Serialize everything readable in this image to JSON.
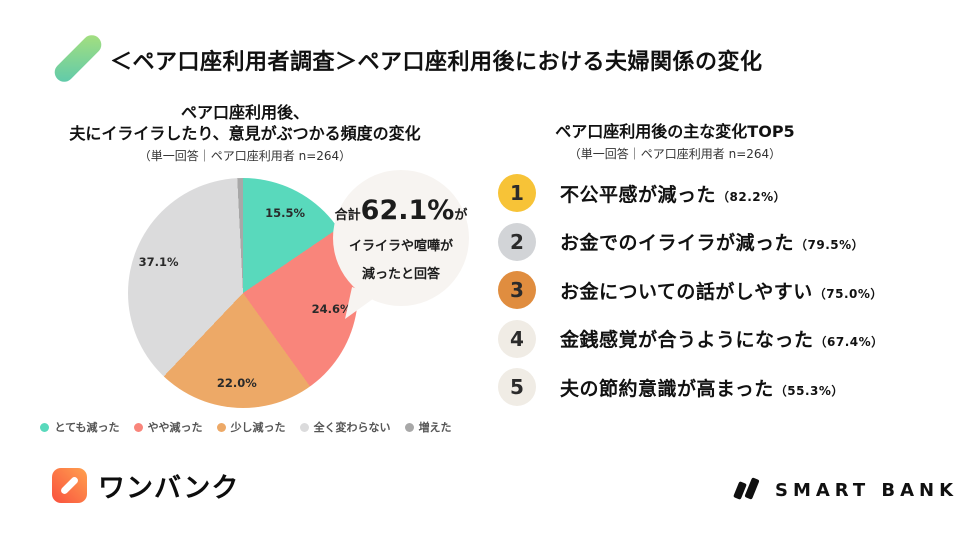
{
  "header": {
    "title": "＜ペア口座利用者調査＞ペア口座利用後における夫婦関係の変化"
  },
  "pie_section": {
    "title_line1": "ペア口座利用後、",
    "title_line2": "夫にイライラしたり、意見がぶつかる頻度の変化",
    "subtitle": "（単一回答｜ペア口座利用者 n=264）",
    "bubble": {
      "prefix": "合計",
      "value": "62.1%",
      "suffix": "が",
      "line2": "イライラや喧嘩が",
      "line3": "減ったと回答"
    }
  },
  "chart_data": {
    "type": "pie",
    "title": "ペア口座利用後、夫にイライラしたり、意見がぶつかる頻度の変化",
    "subtitle": "（単一回答｜ペア口座利用者 n=264）",
    "labels": [
      "とても減った",
      "やや減った",
      "少し減った",
      "全く変わらない",
      "増えた"
    ],
    "values": [
      15.5,
      24.6,
      22.0,
      37.1,
      0.8
    ],
    "display_labels": [
      "15.5%",
      "24.6%",
      "22.0%",
      "37.1%",
      ""
    ],
    "colors": [
      "#59d9bc",
      "#f9857b",
      "#eda967",
      "#dbdbdc",
      "#a8a8a8"
    ],
    "start_angle_deg": 0,
    "direction": "clockwise",
    "legend_position": "bottom",
    "annotation": "合計62.1%がイライラや喧嘩が減ったと回答"
  },
  "ranking": {
    "title": "ペア口座利用後の主な変化TOP5",
    "subtitle": "（単一回答｜ペア口座利用者 n=264）",
    "items": [
      {
        "rank": "1",
        "label": "不公平感が減った",
        "percent": "（82.2%）",
        "badge_color": "#f7c337"
      },
      {
        "rank": "2",
        "label": "お金でのイライラが減った",
        "percent": "（79.5%）",
        "badge_color": "#d2d4d7"
      },
      {
        "rank": "3",
        "label": "お金についての話がしやすい",
        "percent": "（75.0%）",
        "badge_color": "#e08d3f"
      },
      {
        "rank": "4",
        "label": "金銭感覚が合うようになった",
        "percent": "（67.4%）",
        "badge_color": "#f0ece5"
      },
      {
        "rank": "5",
        "label": "夫の節約意識が高まった",
        "percent": "（55.3%）",
        "badge_color": "#f0ece5"
      }
    ]
  },
  "footer": {
    "onebank_label": "ワンバンク",
    "smartbank_label": "SMART BANK"
  }
}
